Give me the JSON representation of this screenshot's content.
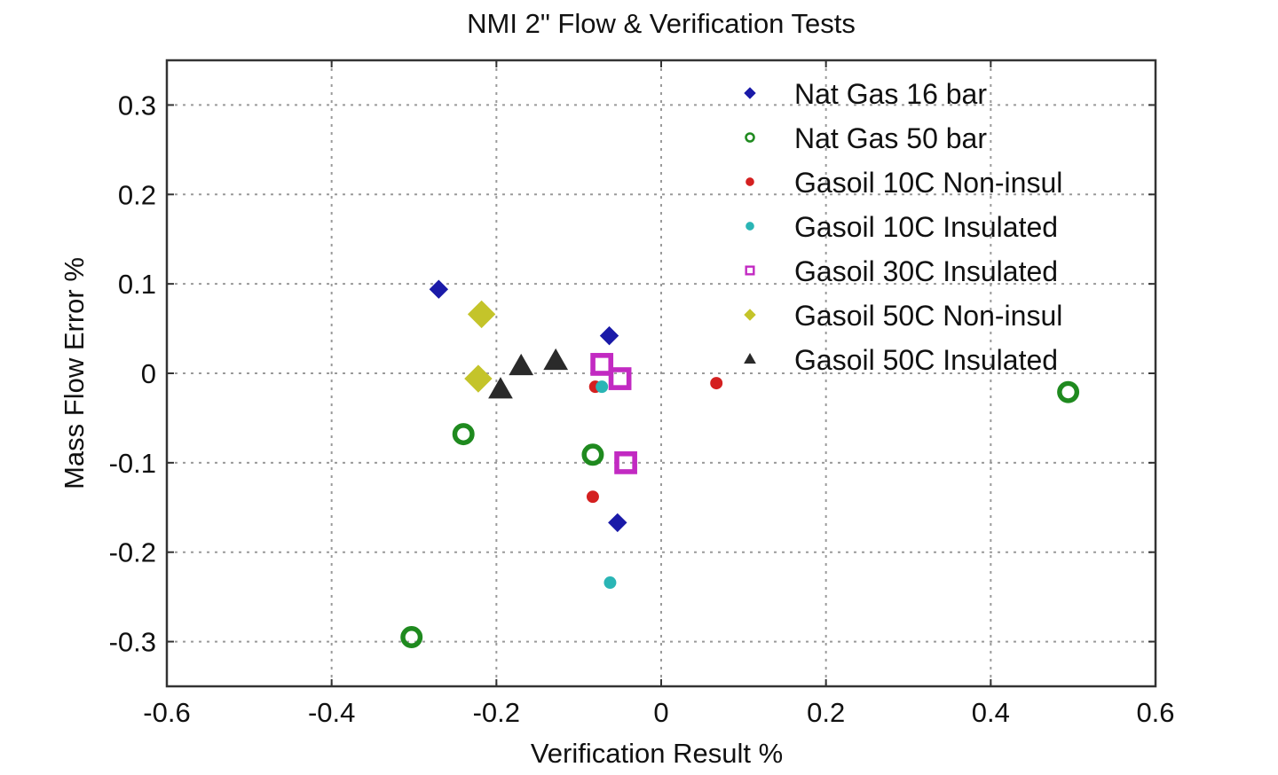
{
  "chart_data": {
    "type": "scatter",
    "title": "NMI 2\" Flow & Verification Tests",
    "xlabel": "Verification Result %",
    "ylabel": "Mass Flow Error %",
    "xlim": [
      -0.6,
      0.6
    ],
    "ylim": [
      -0.35,
      0.35
    ],
    "xticks": [
      -0.6,
      -0.4,
      -0.2,
      0,
      0.2,
      0.4,
      0.6
    ],
    "xtick_labels": [
      "-0.6",
      "-0.4",
      "-0.2",
      "0",
      "0.2",
      "0.4",
      "0.6"
    ],
    "yticks": [
      0.3,
      0.2,
      0.1,
      0,
      -0.1,
      -0.2,
      -0.3
    ],
    "ytick_labels": [
      "0.3",
      "0.2",
      "0.1",
      "0",
      "-0.1",
      "-0.2",
      "-0.3"
    ],
    "grid": true,
    "legend_position": "top-right",
    "series": [
      {
        "name": "Nat Gas 16 bar",
        "color": "#1a1aa8",
        "marker": "diamond",
        "points": [
          [
            -0.27,
            0.094
          ],
          [
            -0.063,
            0.042
          ],
          [
            -0.053,
            -0.167
          ]
        ]
      },
      {
        "name": "Nat Gas 50 bar",
        "color": "#1f8a1f",
        "marker": "circle-open",
        "points": [
          [
            -0.24,
            -0.068
          ],
          [
            -0.083,
            -0.091
          ],
          [
            -0.303,
            -0.295
          ],
          [
            0.494,
            -0.021
          ]
        ]
      },
      {
        "name": "Gasoil 10C Non-insul",
        "color": "#d42020",
        "marker": "circle",
        "points": [
          [
            -0.08,
            -0.015
          ],
          [
            0.067,
            -0.011
          ],
          [
            -0.083,
            -0.138
          ]
        ]
      },
      {
        "name": "Gasoil 10C Insulated",
        "color": "#2ab5b5",
        "marker": "circle",
        "points": [
          [
            -0.072,
            -0.015
          ],
          [
            -0.062,
            -0.234
          ]
        ]
      },
      {
        "name": "Gasoil 30C Insulated",
        "color": "#c22ac2",
        "marker": "square-open",
        "points": [
          [
            -0.072,
            0.01
          ],
          [
            -0.05,
            -0.006
          ],
          [
            -0.043,
            -0.1
          ]
        ]
      },
      {
        "name": "Gasoil 50C Non-insul",
        "color": "#c4c42a",
        "marker": "diamond",
        "points": [
          [
            -0.218,
            0.066
          ],
          [
            -0.222,
            -0.006
          ]
        ]
      },
      {
        "name": "Gasoil 50C Insulated",
        "color": "#2a2a2a",
        "marker": "triangle",
        "points": [
          [
            -0.17,
            0.008
          ],
          [
            -0.128,
            0.014
          ],
          [
            -0.195,
            -0.018
          ]
        ]
      }
    ]
  }
}
